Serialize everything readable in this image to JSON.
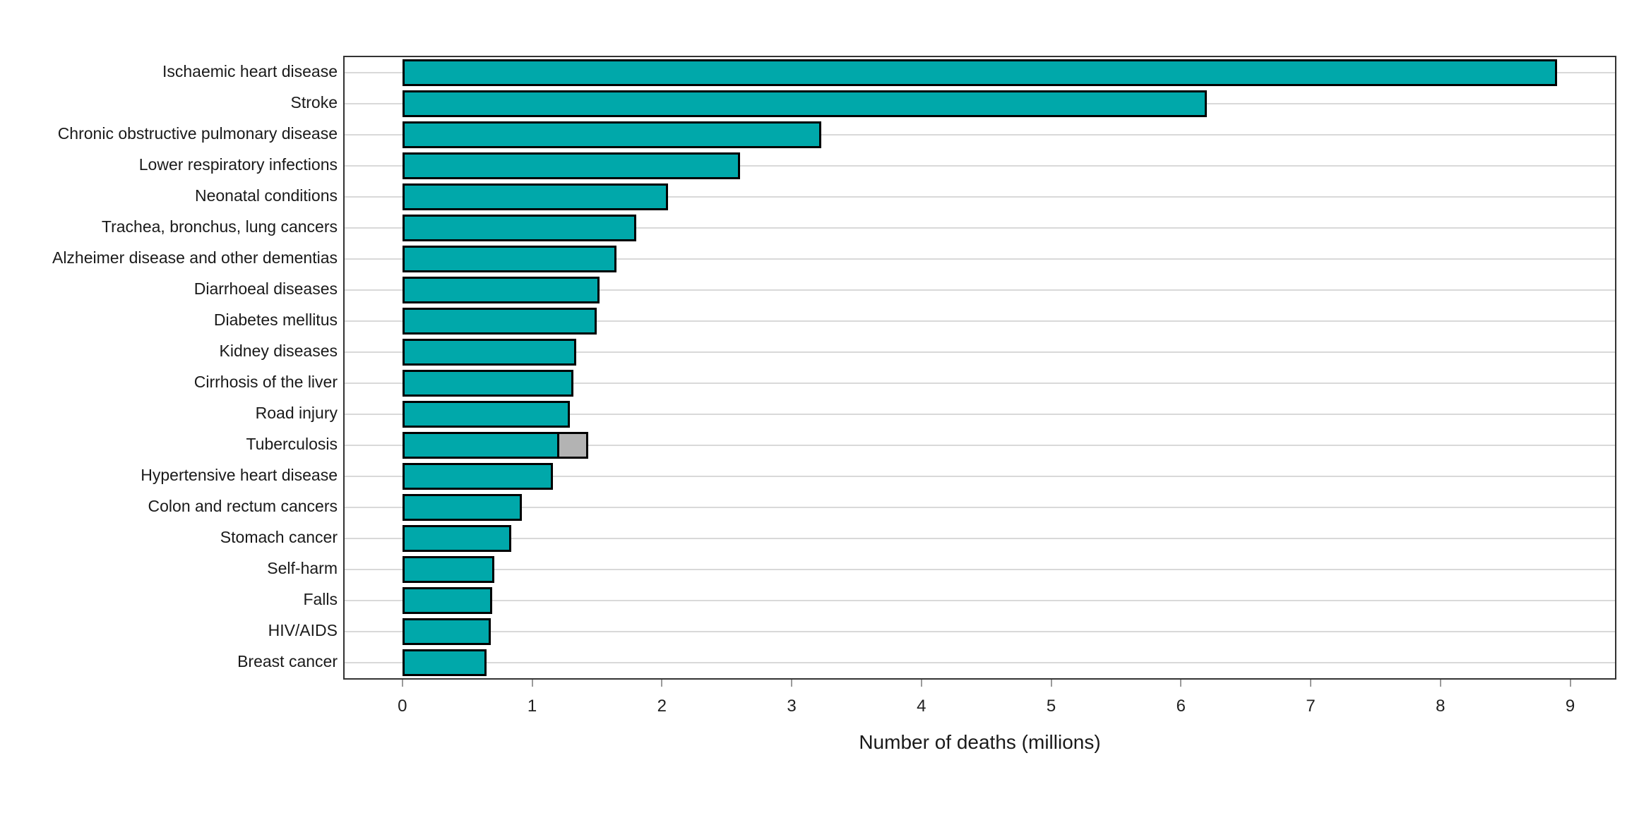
{
  "chart_data": {
    "type": "bar",
    "orientation": "horizontal",
    "title": "",
    "xlabel": "Number of deaths (millions)",
    "ylabel": "",
    "x_ticks": [
      0,
      1,
      2,
      3,
      4,
      5,
      6,
      7,
      8,
      9
    ],
    "xlim": [
      -0.445,
      9.345
    ],
    "grid": "horizontal-only",
    "legend": "none",
    "categories": [
      "Ischaemic heart disease",
      "Stroke",
      "Chronic obstructive pulmonary disease",
      "Lower respiratory infections",
      "Neonatal conditions",
      "Trachea, bronchus, lung cancers",
      "Alzheimer disease and other dementias",
      "Diarrhoeal diseases",
      "Diabetes mellitus",
      "Kidney diseases",
      "Cirrhosis of the liver",
      "Road injury",
      "Tuberculosis",
      "Hypertensive heart disease",
      "Colon and rectum cancers",
      "Stomach cancer",
      "Self-harm",
      "Falls",
      "HIV/AIDS",
      "Breast cancer"
    ],
    "values": [
      8.9,
      6.2,
      3.23,
      2.6,
      2.05,
      1.8,
      1.65,
      1.52,
      1.5,
      1.34,
      1.32,
      1.29,
      1.21,
      1.16,
      0.92,
      0.84,
      0.71,
      0.69,
      0.68,
      0.65
    ],
    "extra_segments": [
      {
        "category": "Tuberculosis",
        "start": 1.21,
        "end": 1.43
      }
    ],
    "colors": {
      "bar_fill": "#00A8AA",
      "bar_border": "#000000",
      "extra_segment_fill": "#B3B3B3",
      "gridline": "#D9D9D9",
      "panel_border": "#333333",
      "tick_mark": "#9B9B9B",
      "text": "#1A1A1A"
    }
  }
}
